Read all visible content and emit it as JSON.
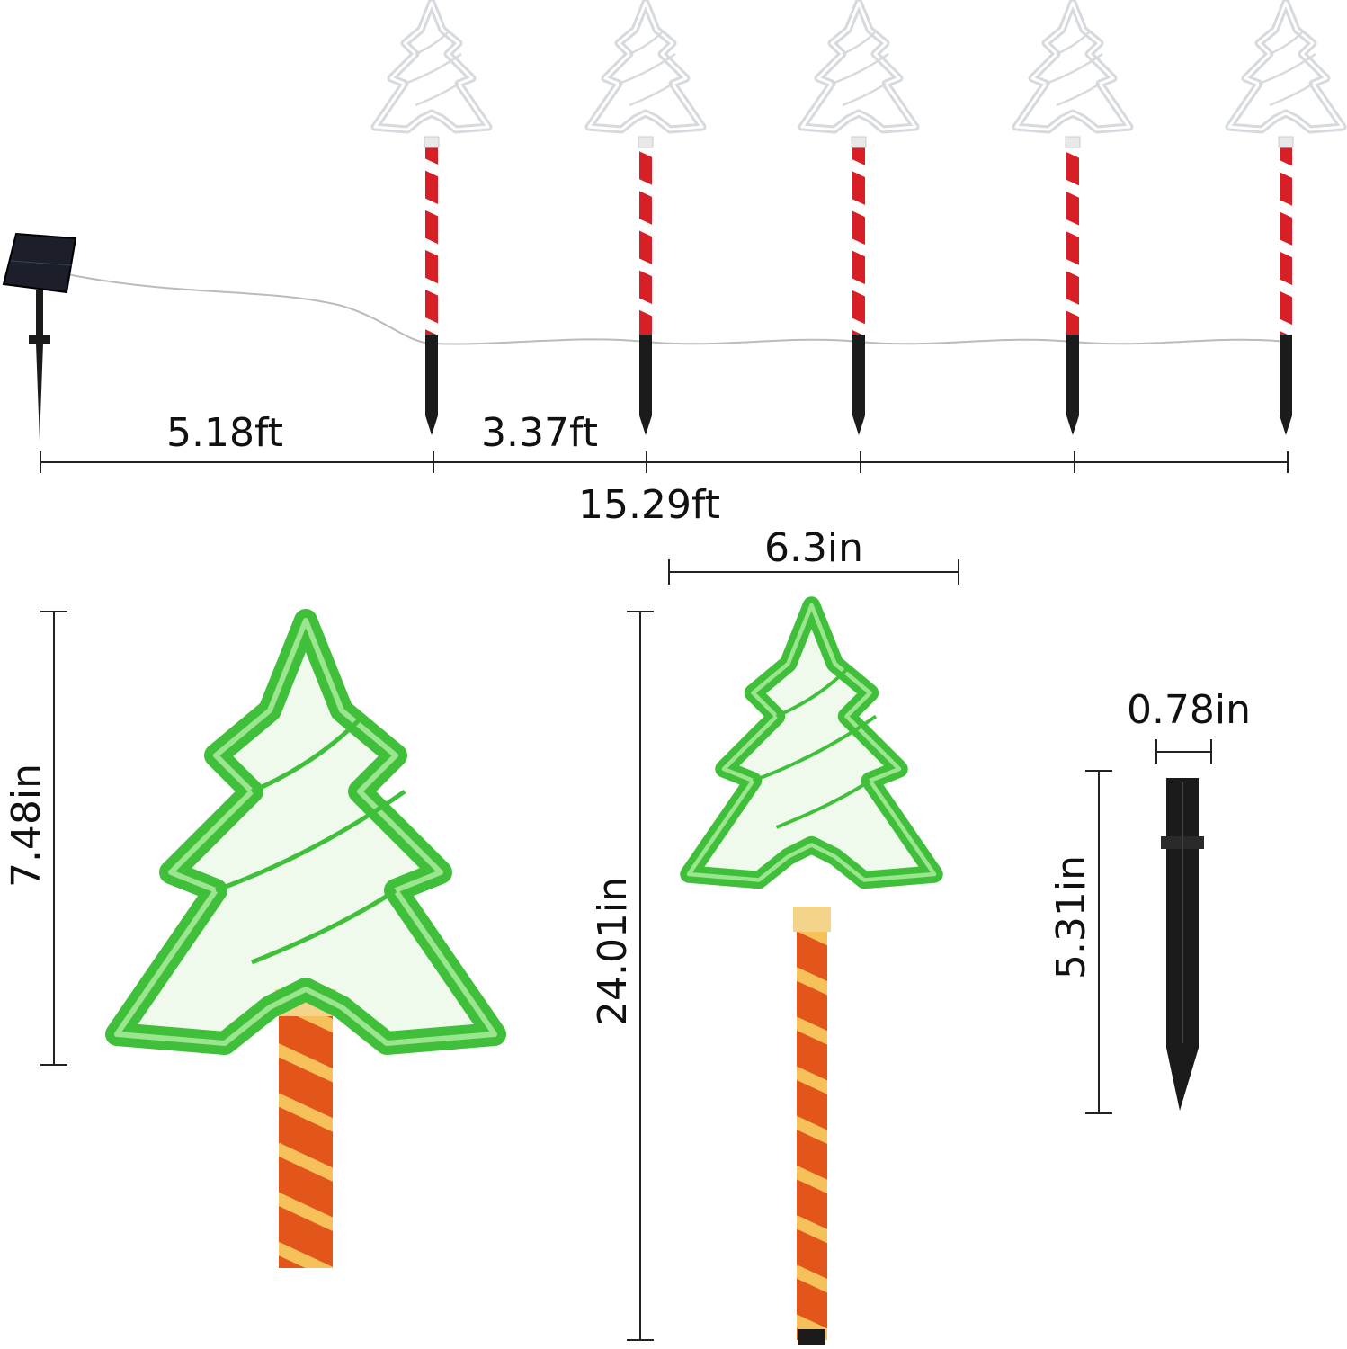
{
  "top": {
    "spacing_first": "5.18ft",
    "spacing_between": "3.37ft",
    "total_length": "15.29ft"
  },
  "bottom": {
    "tree_height": "7.48in",
    "tree_width": "6.3in",
    "stake_light_height": "24.01in",
    "stake_width": "0.78in",
    "stake_height": "5.31in"
  },
  "colors": {
    "tree_lit": "#3fbf3a",
    "tree_unlit": "#e6e8ec",
    "stake_red": "#d81f26",
    "stake_lit": "#e2561c",
    "stake_black": "#1b1b1b"
  }
}
